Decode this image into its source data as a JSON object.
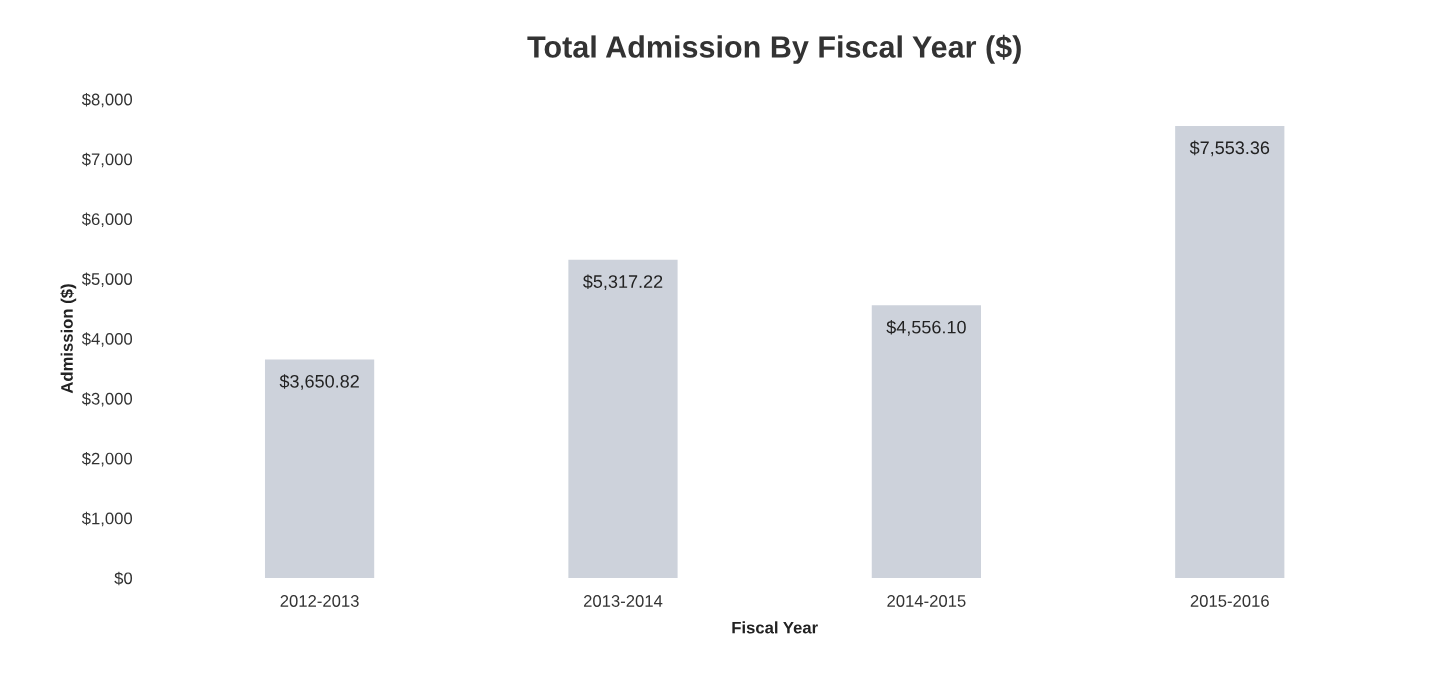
{
  "chart_data": {
    "type": "bar",
    "title": "Total Admission By Fiscal Year ($)",
    "xlabel": "Fiscal Year",
    "ylabel": "Admission ($)",
    "categories": [
      "2012-2013",
      "2013-2014",
      "2014-2015",
      "2015-2016"
    ],
    "values": [
      3650.82,
      5317.22,
      4556.1,
      7553.36
    ],
    "value_labels": [
      "$3,650.82",
      "$5,317.22",
      "$4,556.10",
      "$7,553.36"
    ],
    "color": "#cdd2db",
    "ylim": [
      0,
      8000
    ],
    "yticks": [
      {
        "value": 0,
        "label": "$0"
      },
      {
        "value": 1000,
        "label": "$1,000"
      },
      {
        "value": 2000,
        "label": "$2,000"
      },
      {
        "value": 3000,
        "label": "$3,000"
      },
      {
        "value": 4000,
        "label": "$4,000"
      },
      {
        "value": 5000,
        "label": "$5,000"
      },
      {
        "value": 6000,
        "label": "$6,000"
      },
      {
        "value": 7000,
        "label": "$7,000"
      },
      {
        "value": 8000,
        "label": "$8,000"
      }
    ],
    "grid": false
  }
}
